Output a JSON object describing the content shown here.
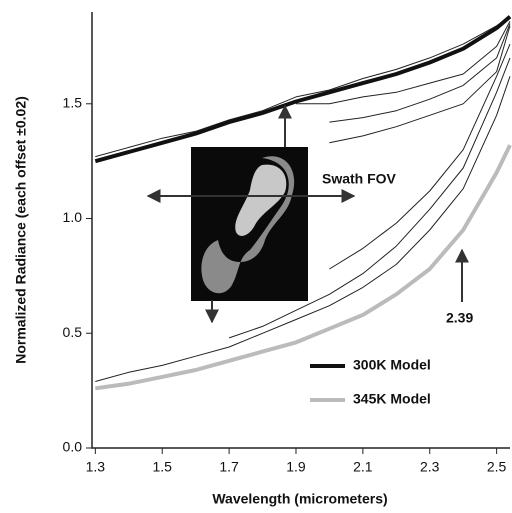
{
  "chart_data": {
    "type": "line",
    "xlabel": "Wavelength (micrometers)",
    "ylabel": "Normalized Radiance (each offset ±0.02)",
    "xlim": [
      1.29,
      2.54
    ],
    "ylim": [
      0,
      1.9
    ],
    "xticks": [
      1.3,
      1.5,
      1.7,
      1.9,
      2.1,
      2.3,
      2.5
    ],
    "yticks": [
      {
        "value": 0,
        "label": "0.0"
      },
      0.5,
      {
        "value": 1,
        "label": "1.0"
      },
      1.5
    ],
    "x": [
      1.3,
      1.4,
      1.5,
      1.6,
      1.7,
      1.8,
      1.9,
      2.0,
      2.1,
      2.2,
      2.3,
      2.4,
      2.5,
      2.54
    ],
    "series": [
      {
        "name": "300K Model",
        "color": "#111111",
        "values": [
          1.25,
          1.29,
          1.33,
          1.37,
          1.42,
          1.46,
          1.51,
          1.55,
          1.59,
          1.63,
          1.68,
          1.74,
          1.83,
          1.88
        ]
      },
      {
        "name": "345K Model",
        "color": "#bbbbbb",
        "values": [
          0.26,
          0.28,
          0.31,
          0.34,
          0.38,
          0.42,
          0.46,
          0.52,
          0.58,
          0.67,
          0.78,
          0.95,
          1.2,
          1.32
        ]
      }
    ],
    "spectra_color": "#222222",
    "spectra": [
      [
        1.27,
        1.31,
        1.35,
        1.38,
        1.43,
        1.47,
        1.53,
        1.56,
        1.61,
        1.65,
        1.7,
        1.76,
        1.84,
        1.88
      ],
      [
        null,
        null,
        null,
        null,
        null,
        null,
        1.5,
        1.5,
        1.53,
        1.55,
        1.59,
        1.63,
        1.75,
        1.86
      ],
      [
        null,
        null,
        null,
        null,
        null,
        null,
        null,
        1.42,
        1.44,
        1.47,
        1.52,
        1.58,
        1.7,
        1.85
      ],
      [
        null,
        null,
        null,
        null,
        null,
        null,
        null,
        1.33,
        1.36,
        1.4,
        1.45,
        1.5,
        1.64,
        1.84
      ],
      [
        0.29,
        0.33,
        0.36,
        0.4,
        0.44,
        0.5,
        0.56,
        0.62,
        0.7,
        0.8,
        0.95,
        1.13,
        1.45,
        1.62
      ],
      [
        null,
        null,
        null,
        null,
        0.48,
        0.53,
        0.6,
        0.67,
        0.76,
        0.88,
        1.04,
        1.22,
        1.55,
        1.7
      ],
      [
        null,
        null,
        null,
        null,
        null,
        null,
        null,
        0.78,
        0.87,
        0.98,
        1.12,
        1.3,
        1.62,
        1.76
      ]
    ],
    "annotations": [
      "Swath FOV",
      "2.39"
    ],
    "legend": "lower right"
  }
}
